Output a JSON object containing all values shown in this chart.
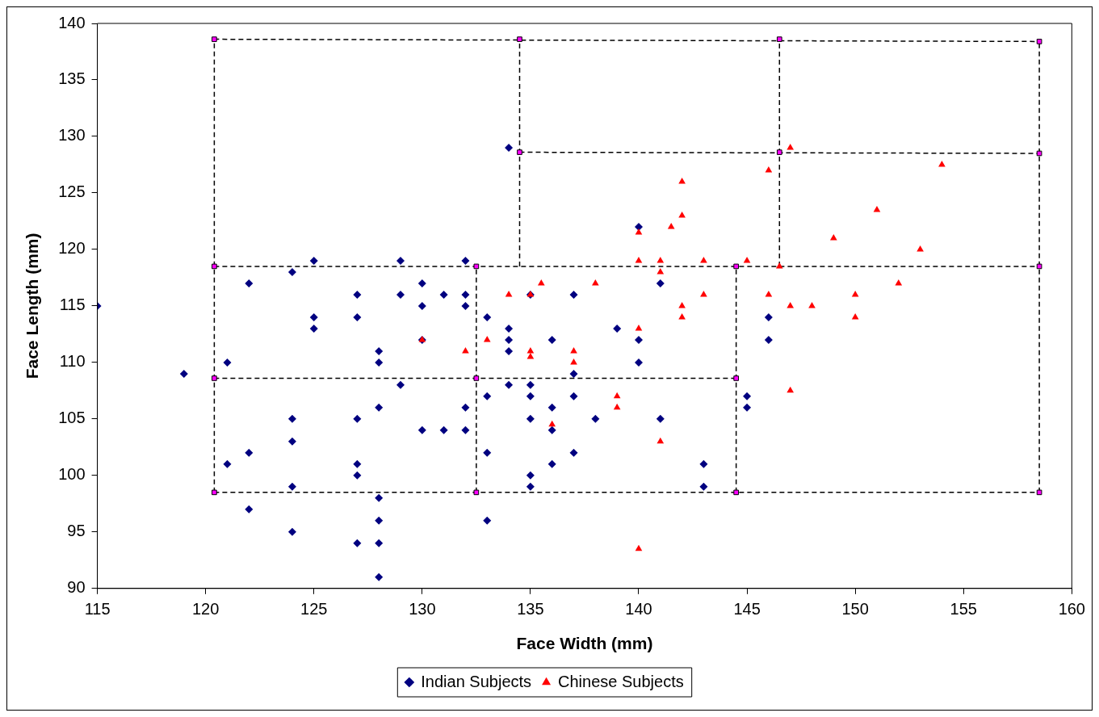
{
  "chart_data": {
    "type": "scatter",
    "xlabel": "Face Width (mm)",
    "ylabel": "Face Length (mm)",
    "xlim": [
      115,
      160
    ],
    "xticks": [
      115,
      120,
      125,
      130,
      135,
      140,
      145,
      150,
      155,
      160
    ],
    "ylim": [
      90,
      140
    ],
    "yticks": [
      90,
      95,
      100,
      105,
      110,
      115,
      120,
      125,
      130,
      135,
      140
    ],
    "grid": false,
    "legend": "bottom",
    "series": [
      {
        "name": "Indian Subjects",
        "type": "scatter",
        "marker": "diamond",
        "color": "#000080",
        "x": [
          115,
          119,
          121,
          121,
          122,
          122,
          122,
          124,
          124,
          124,
          124,
          124,
          125,
          125,
          125,
          127,
          127,
          127,
          127,
          127,
          127,
          128,
          128,
          128,
          128,
          128,
          128,
          128,
          129,
          129,
          129,
          130,
          130,
          130,
          130,
          131,
          131,
          132,
          132,
          132,
          132,
          132,
          133,
          133,
          133,
          133,
          134,
          134,
          134,
          134,
          134,
          135,
          135,
          135,
          135,
          135,
          135,
          136,
          136,
          136,
          136,
          137,
          137,
          137,
          137,
          138,
          139,
          140,
          140,
          140,
          141,
          141,
          143,
          143,
          145,
          145,
          146,
          146
        ],
        "values": [
          115,
          109,
          110,
          101,
          117,
          102,
          97,
          118,
          105,
          103,
          99,
          95,
          119,
          114,
          113,
          116,
          114,
          105,
          101,
          100,
          94,
          111,
          110,
          106,
          98,
          96,
          94,
          91,
          119,
          116,
          108,
          117,
          115,
          112,
          104,
          116,
          104,
          119,
          116,
          115,
          106,
          104,
          114,
          107,
          102,
          96,
          129,
          113,
          112,
          111,
          108,
          116,
          108,
          107,
          105,
          100,
          99,
          112,
          106,
          104,
          101,
          116,
          109,
          107,
          102,
          105,
          113,
          122,
          112,
          110,
          117,
          105,
          101,
          99,
          107,
          106,
          114,
          112
        ]
      },
      {
        "name": "Chinese Subjects",
        "type": "scatter",
        "marker": "triangle",
        "color": "#ff0000",
        "x": [
          130,
          132,
          133,
          134,
          135,
          135.5,
          135,
          135,
          136,
          137,
          137,
          138,
          139,
          139,
          140,
          140,
          140,
          140,
          141,
          141,
          141,
          141.5,
          142,
          142,
          142,
          142,
          143,
          143,
          145,
          146,
          146,
          146.5,
          147,
          147,
          147,
          148,
          149,
          150,
          150,
          151,
          152,
          153,
          154
        ],
        "values": [
          112,
          111,
          112,
          116,
          116,
          117,
          111,
          110.5,
          104.5,
          111,
          110,
          117,
          107,
          106,
          119,
          113,
          93.5,
          121.5,
          119,
          118,
          103,
          122,
          126,
          123,
          115,
          114,
          119,
          116,
          119,
          127,
          116,
          118.5,
          129,
          115,
          107.5,
          115,
          121,
          116,
          114,
          123.5,
          117,
          120,
          127.5
        ]
      },
      {
        "type": "line",
        "marker": "none",
        "line_style": "dashed",
        "color": "#000000",
        "x": [
          120.4,
          158.5
        ],
        "values": [
          98.5,
          98.5
        ]
      },
      {
        "type": "line",
        "marker": "none",
        "line_style": "dashed",
        "color": "#000000",
        "x": [
          120.4,
          144.5
        ],
        "values": [
          108.6,
          108.6
        ]
      },
      {
        "type": "line",
        "marker": "none",
        "line_style": "dashed",
        "color": "#000000",
        "x": [
          120.4,
          158.5
        ],
        "values": [
          118.5,
          118.5
        ]
      },
      {
        "type": "line",
        "marker": "none",
        "line_style": "dashed",
        "color": "#000000",
        "x": [
          134.5,
          158.5
        ],
        "values": [
          128.6,
          128.5
        ]
      },
      {
        "type": "line",
        "marker": "none",
        "line_style": "dashed",
        "color": "#000000",
        "x": [
          120.4,
          158.5
        ],
        "values": [
          138.6,
          138.4
        ]
      },
      {
        "type": "line",
        "marker": "none",
        "line_style": "dashed",
        "color": "#000000",
        "x": [
          120.4,
          120.4
        ],
        "values": [
          98.5,
          138.6
        ]
      },
      {
        "type": "line",
        "marker": "none",
        "line_style": "dashed",
        "color": "#000000",
        "x": [
          132.5,
          132.5
        ],
        "values": [
          98.5,
          118.5
        ]
      },
      {
        "type": "line",
        "marker": "none",
        "line_style": "dashed",
        "color": "#000000",
        "x": [
          144.5,
          144.5
        ],
        "values": [
          98.5,
          118.5
        ]
      },
      {
        "type": "line",
        "marker": "none",
        "line_style": "dashed",
        "color": "#000000",
        "x": [
          134.5,
          134.5
        ],
        "values": [
          118.5,
          138.6
        ]
      },
      {
        "type": "line",
        "marker": "none",
        "line_style": "dashed",
        "color": "#000000",
        "x": [
          146.5,
          146.5
        ],
        "values": [
          118.5,
          138.6
        ]
      },
      {
        "type": "line",
        "marker": "none",
        "line_style": "dashed",
        "color": "#000000",
        "x": [
          158.5,
          158.5
        ],
        "values": [
          98.5,
          138.4
        ]
      },
      {
        "type": "scatter",
        "marker": "square",
        "color": "#ff00ff",
        "x": [
          120.4,
          134.5,
          146.5,
          158.5,
          134.5,
          146.5,
          158.5,
          120.4,
          132.5,
          144.5,
          158.5,
          120.4,
          132.5,
          144.5,
          120.4,
          132.5,
          144.5,
          158.5
        ],
        "values": [
          138.6,
          138.6,
          138.6,
          138.4,
          128.6,
          128.6,
          128.5,
          118.5,
          118.5,
          118.5,
          118.5,
          108.6,
          108.6,
          108.6,
          98.5,
          98.5,
          98.5,
          98.5
        ]
      }
    ]
  }
}
